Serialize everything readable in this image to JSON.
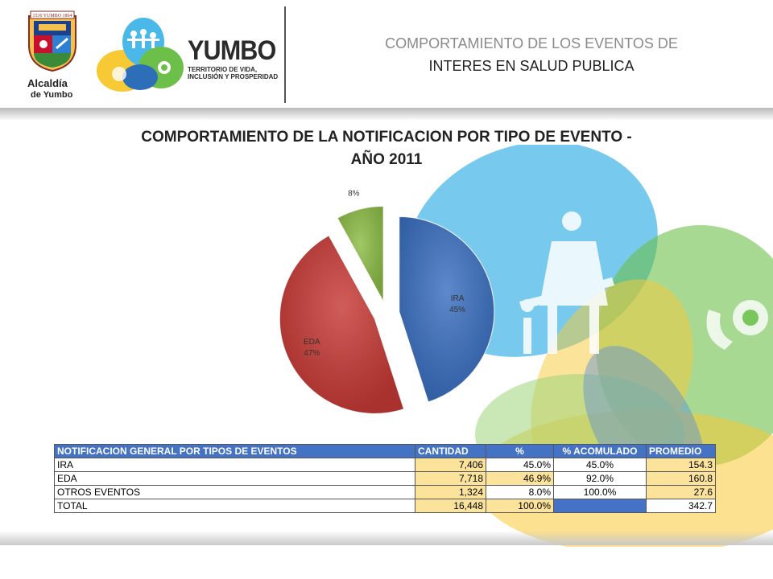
{
  "header": {
    "crest_caption_1": "Alcaldía",
    "crest_caption_2": "de Yumbo",
    "crest_band": "1536 YUMBO 1864",
    "yumbo_wordmark": "YUMBO",
    "yumbo_tagline_1": "TERRITORIO DE VIDA,",
    "yumbo_tagline_2": "INCLUSIÓN Y PROSPERIDAD",
    "title_line_1": "COMPORTAMIENTO DE LOS EVENTOS DE",
    "title_line_2": "INTERES EN SALUD PUBLICA"
  },
  "chart_data": {
    "type": "pie",
    "title": "COMPORTAMIENTO DE LA NOTIFICACION POR TIPO DE EVENTO - AÑO 2011",
    "title_line_1": "COMPORTAMIENTO DE LA NOTIFICACION POR TIPO DE EVENTO -",
    "title_line_2": "AÑO 2011",
    "slices": [
      {
        "label": "IRA",
        "pct_label": "45%",
        "value": 45.0,
        "color": "#3b6fc1"
      },
      {
        "label": "EDA",
        "pct_label": "47%",
        "value": 46.9,
        "color": "#c73a36"
      },
      {
        "label": "OTROS EVENTOS",
        "pct_label": "8%",
        "value": 8.0,
        "color": "#8cbc45"
      }
    ],
    "exploded": true,
    "legend": "none"
  },
  "table": {
    "headers": [
      "NOTIFICACION  GENERAL POR TIPOS DE EVENTOS",
      "CANTIDAD",
      "%",
      "% ACOMULADO",
      "PROMEDIO"
    ],
    "rows": [
      [
        "IRA",
        "7,406",
        "45.0%",
        "45.0%",
        "154.3"
      ],
      [
        "EDA",
        "7,718",
        "46.9%",
        "92.0%",
        "160.8"
      ],
      [
        "OTROS EVENTOS",
        "1,324",
        "8.0%",
        "100.0%",
        "27.6"
      ],
      [
        "TOTAL",
        "16,448",
        "100.0%",
        "",
        "342.7"
      ]
    ]
  },
  "colors": {
    "table_header": "#4472c4",
    "table_highlight": "#fbe39b"
  }
}
